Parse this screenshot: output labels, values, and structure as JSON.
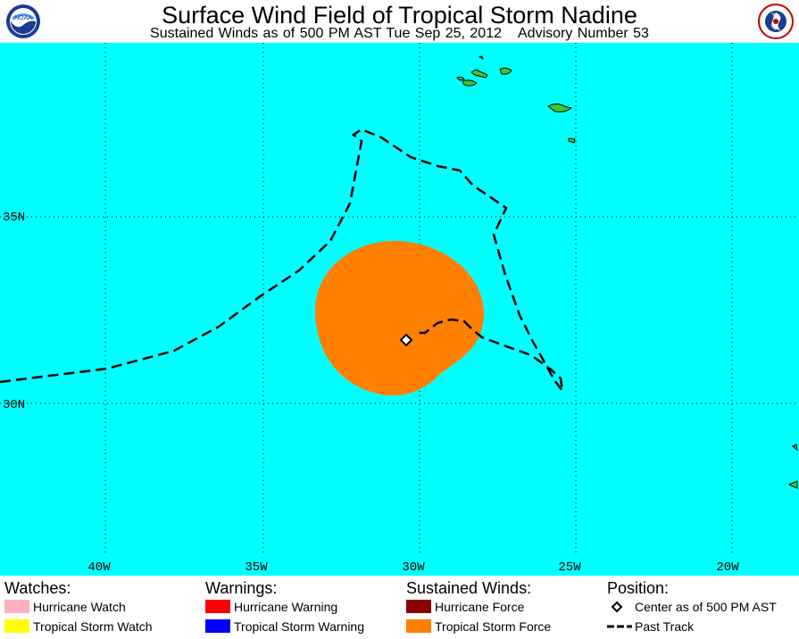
{
  "header": {
    "title": "Surface Wind Field of Tropical Storm Nadine",
    "subtitle_time": "Sustained Winds as of 500 PM AST Tue Sep 25, 2012",
    "subtitle_advisory": "Advisory Number 53",
    "left_logo": "noaa-logo",
    "right_logo": "nws-logo"
  },
  "map": {
    "lat_labels": [
      "35N",
      "30N"
    ],
    "lon_labels": [
      "40W",
      "35W",
      "30W",
      "25W",
      "20W"
    ],
    "ocean_color": "#00ffff",
    "land_color": "#33cc33",
    "wind_field_color": "#ff8000"
  },
  "legend": {
    "watches": {
      "heading": "Watches:",
      "hurricane_watch": "Hurricane Watch",
      "hurricane_watch_color": "#ffb0c0",
      "tropical_storm_watch": "Tropical Storm Watch",
      "tropical_storm_watch_color": "#ffff00"
    },
    "warnings": {
      "heading": "Warnings:",
      "hurricane_warning": "Hurricane Warning",
      "hurricane_warning_color": "#ff0000",
      "tropical_storm_warning": "Tropical Storm Warning",
      "tropical_storm_warning_color": "#0000ff"
    },
    "sustained_winds": {
      "heading": "Sustained Winds:",
      "hurricane_force": "Hurricane Force",
      "hurricane_force_color": "#8b0000",
      "tropical_storm_force": "Tropical Storm Force",
      "tropical_storm_force_color": "#ff8000"
    },
    "position": {
      "heading": "Position:",
      "center": "Center as of 500 PM AST",
      "past_track": "Past Track"
    }
  }
}
